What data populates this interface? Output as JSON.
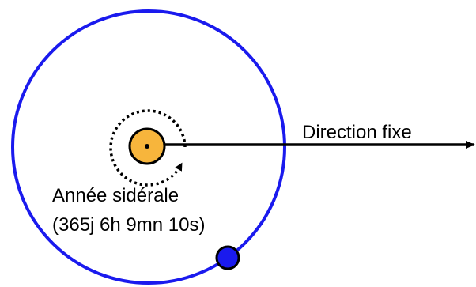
{
  "diagram": {
    "direction_label": "Direction fixe",
    "year_label_line1": "Année sidérale",
    "year_label_line2": "(365j 6h 9mn 10s)"
  },
  "colors": {
    "orbit": "#1a1aee",
    "sun_fill": "#f7b53c",
    "earth_fill": "#1a1aee",
    "ink": "#000000"
  }
}
